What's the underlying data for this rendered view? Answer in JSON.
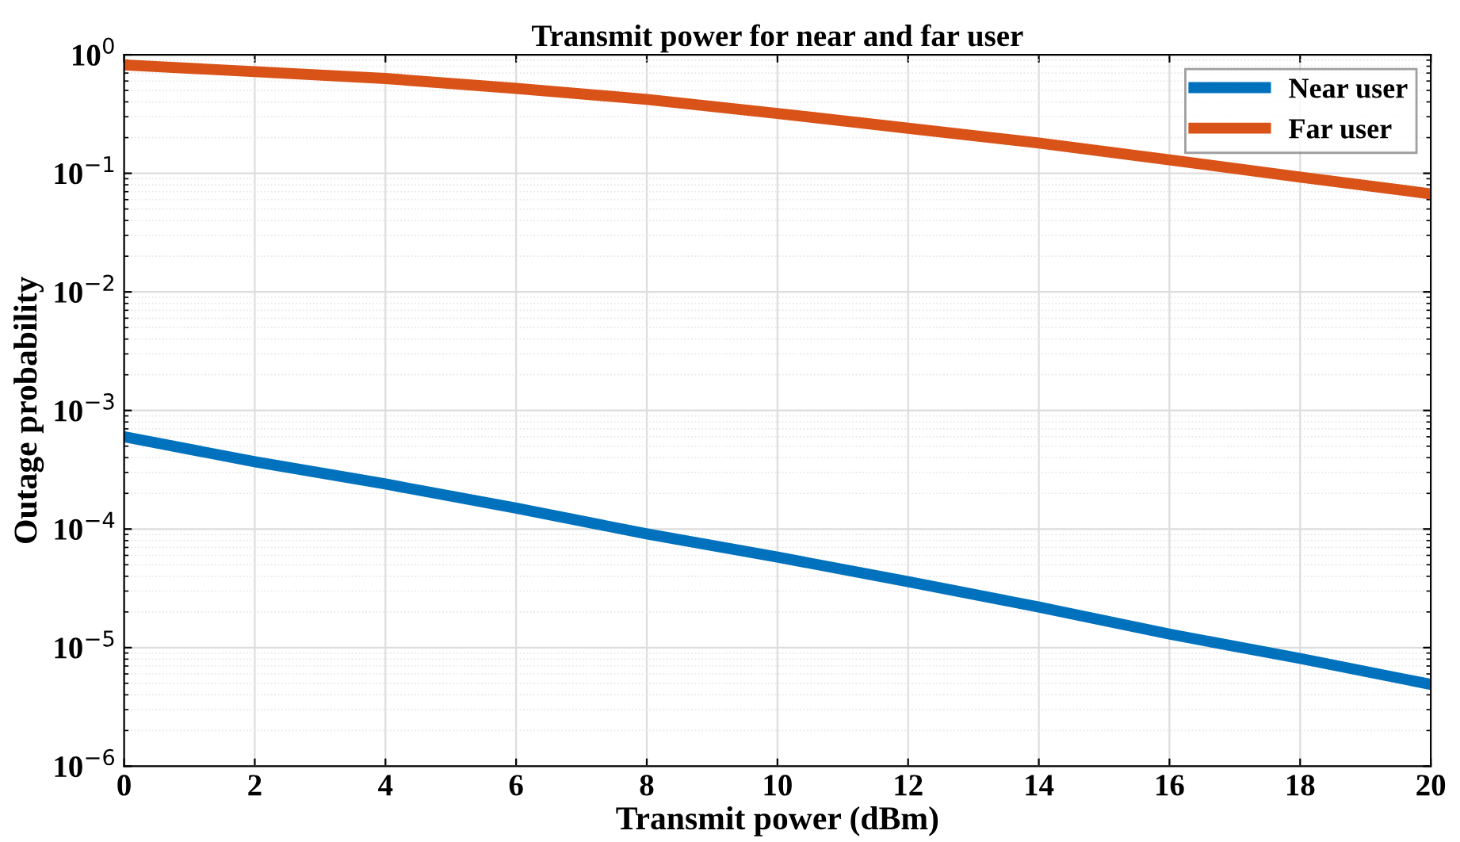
{
  "chart_data": {
    "type": "line",
    "title": "Transmit power for near and far user",
    "xlabel": "Transmit power (dBm)",
    "ylabel": "Outage probability",
    "x": [
      0,
      2,
      4,
      6,
      8,
      10,
      12,
      14,
      16,
      18,
      20
    ],
    "series": [
      {
        "name": "Near user",
        "color": "#0072bd",
        "values": [
          0.0006,
          0.00037,
          0.00024,
          0.00015,
          9.1e-05,
          5.8e-05,
          3.6e-05,
          2.2e-05,
          1.3e-05,
          8.1e-06,
          4.9e-06
        ]
      },
      {
        "name": "Far user",
        "color": "#d95319",
        "values": [
          0.82,
          0.72,
          0.63,
          0.52,
          0.42,
          0.32,
          0.24,
          0.18,
          0.13,
          0.093,
          0.067
        ]
      }
    ],
    "log": "y",
    "xlim": [
      0,
      20
    ],
    "xticks": [
      0,
      2,
      4,
      6,
      8,
      10,
      12,
      14,
      16,
      18,
      20
    ],
    "ylim": [
      1e-06,
      1
    ],
    "yticks": [
      {
        "value": 1e-06,
        "label": "10$^{−6}$"
      },
      {
        "value": 1e-05,
        "label": "10$^{−5}$"
      },
      {
        "value": 0.0001,
        "label": "10$^{−4}$"
      },
      {
        "value": 0.001,
        "label": "10$^{−3}$"
      },
      {
        "value": 0.01,
        "label": "10$^{−2}$"
      },
      {
        "value": 0.1,
        "label": "10$^{−1}$"
      },
      {
        "value": 1,
        "label": "10$^{0}$"
      }
    ],
    "grid": true,
    "legend": "top right",
    "line_style": "solid",
    "marker": "none"
  }
}
